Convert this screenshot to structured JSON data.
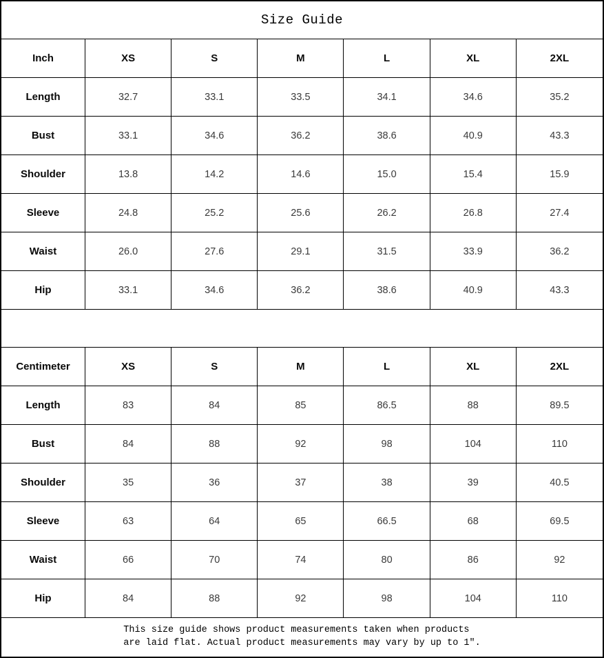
{
  "title": "Size Guide",
  "sizes": [
    "XS",
    "S",
    "M",
    "L",
    "XL",
    "2XL"
  ],
  "inch_table": {
    "unit_label": "Inch",
    "rows": [
      {
        "label": "Length",
        "values": [
          "32.7",
          "33.1",
          "33.5",
          "34.1",
          "34.6",
          "35.2"
        ]
      },
      {
        "label": "Bust",
        "values": [
          "33.1",
          "34.6",
          "36.2",
          "38.6",
          "40.9",
          "43.3"
        ]
      },
      {
        "label": "Shoulder",
        "values": [
          "13.8",
          "14.2",
          "14.6",
          "15.0",
          "15.4",
          "15.9"
        ]
      },
      {
        "label": "Sleeve",
        "values": [
          "24.8",
          "25.2",
          "25.6",
          "26.2",
          "26.8",
          "27.4"
        ]
      },
      {
        "label": "Waist",
        "values": [
          "26.0",
          "27.6",
          "29.1",
          "31.5",
          "33.9",
          "36.2"
        ]
      },
      {
        "label": "Hip",
        "values": [
          "33.1",
          "34.6",
          "36.2",
          "38.6",
          "40.9",
          "43.3"
        ]
      }
    ]
  },
  "cm_table": {
    "unit_label": "Centimeter",
    "rows": [
      {
        "label": "Length",
        "values": [
          "83",
          "84",
          "85",
          "86.5",
          "88",
          "89.5"
        ]
      },
      {
        "label": "Bust",
        "values": [
          "84",
          "88",
          "92",
          "98",
          "104",
          "110"
        ]
      },
      {
        "label": "Shoulder",
        "values": [
          "35",
          "36",
          "37",
          "38",
          "39",
          "40.5"
        ]
      },
      {
        "label": "Sleeve",
        "values": [
          "63",
          "64",
          "65",
          "66.5",
          "68",
          "69.5"
        ]
      },
      {
        "label": "Waist",
        "values": [
          "66",
          "70",
          "74",
          "80",
          "86",
          "92"
        ]
      },
      {
        "label": "Hip",
        "values": [
          "84",
          "88",
          "92",
          "98",
          "104",
          "110"
        ]
      }
    ]
  },
  "footer": {
    "line1": "This size guide shows product measurements taken when products",
    "line2": "are laid flat. Actual product measurements may vary by up to 1″."
  },
  "colors": {
    "border": "#000000",
    "background": "#ffffff",
    "label_text": "#0a0a0a",
    "value_text": "#3a3a3a"
  }
}
